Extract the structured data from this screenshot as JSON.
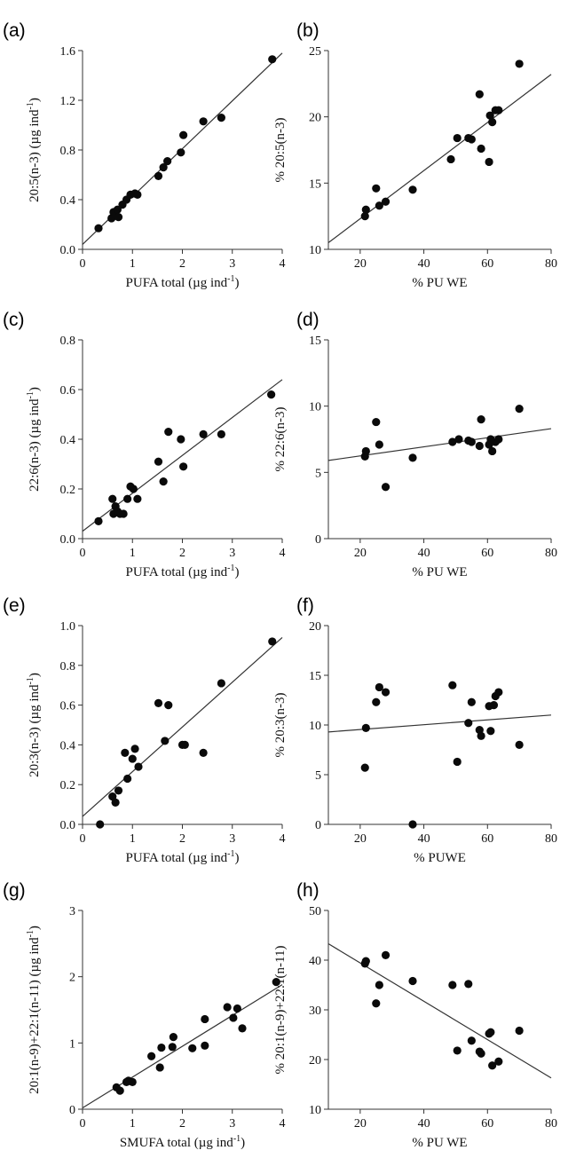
{
  "chart_data": [
    {
      "panel": "(a)",
      "type": "scatter",
      "xlabel": "PUFA total (µg ind",
      "xlabel_sup": "-1",
      "xlabel_end": ")",
      "ylabel": "20:5(n-3) (µg ind",
      "ylabel_sup": "-1",
      "ylabel_end": ")",
      "xlim": [
        0,
        4
      ],
      "ylim": [
        0.0,
        1.6
      ],
      "xticks": [
        0,
        1,
        2,
        3,
        4
      ],
      "yticks": [
        0.0,
        0.4,
        0.8,
        1.2,
        1.6
      ],
      "ytick_decimals": 1,
      "points": [
        [
          0.32,
          0.17
        ],
        [
          0.58,
          0.25
        ],
        [
          0.62,
          0.3
        ],
        [
          0.66,
          0.27
        ],
        [
          0.7,
          0.32
        ],
        [
          0.72,
          0.26
        ],
        [
          0.8,
          0.36
        ],
        [
          0.88,
          0.4
        ],
        [
          0.96,
          0.44
        ],
        [
          1.05,
          0.45
        ],
        [
          1.1,
          0.44
        ],
        [
          1.52,
          0.59
        ],
        [
          1.62,
          0.66
        ],
        [
          1.7,
          0.71
        ],
        [
          1.97,
          0.78
        ],
        [
          2.02,
          0.92
        ],
        [
          2.42,
          1.03
        ],
        [
          2.78,
          1.06
        ],
        [
          3.8,
          1.53
        ]
      ],
      "fit_line": [
        [
          0,
          0.04
        ],
        [
          4,
          1.58
        ]
      ]
    },
    {
      "panel": "(b)",
      "type": "scatter",
      "xlabel": "% PU WE",
      "ylabel": "% 20:5(n-3)",
      "xlim": [
        10,
        80
      ],
      "ylim": [
        10,
        25
      ],
      "xticks": [
        20,
        40,
        60,
        80
      ],
      "yticks": [
        10,
        15,
        20,
        25
      ],
      "ytick_decimals": 0,
      "points": [
        [
          21.5,
          12.5
        ],
        [
          21.8,
          13.0
        ],
        [
          25.0,
          14.6
        ],
        [
          26.0,
          13.3
        ],
        [
          28.0,
          13.6
        ],
        [
          36.5,
          14.5
        ],
        [
          48.5,
          16.8
        ],
        [
          50.5,
          18.4
        ],
        [
          54.0,
          18.4
        ],
        [
          55.0,
          18.3
        ],
        [
          57.5,
          21.7
        ],
        [
          58.0,
          17.6
        ],
        [
          60.5,
          16.6
        ],
        [
          60.8,
          20.1
        ],
        [
          61.5,
          19.6
        ],
        [
          62.5,
          20.5
        ],
        [
          63.5,
          20.5
        ],
        [
          70.0,
          24.0
        ]
      ],
      "fit_line": [
        [
          10,
          10.5
        ],
        [
          80,
          23.2
        ]
      ]
    },
    {
      "panel": "(c)",
      "type": "scatter",
      "xlabel": "PUFA total (µg ind",
      "xlabel_sup": "-1",
      "xlabel_end": ")",
      "ylabel": "22:6(n-3) (µg ind",
      "ylabel_sup": "-1",
      "ylabel_end": ")",
      "xlim": [
        0,
        4
      ],
      "ylim": [
        0.0,
        0.8
      ],
      "xticks": [
        0,
        1,
        2,
        3,
        4
      ],
      "yticks": [
        0.0,
        0.2,
        0.4,
        0.6,
        0.8
      ],
      "ytick_decimals": 1,
      "points": [
        [
          0.32,
          0.07
        ],
        [
          0.6,
          0.16
        ],
        [
          0.62,
          0.1
        ],
        [
          0.66,
          0.13
        ],
        [
          0.7,
          0.11
        ],
        [
          0.75,
          0.1
        ],
        [
          0.82,
          0.1
        ],
        [
          0.9,
          0.16
        ],
        [
          0.96,
          0.21
        ],
        [
          1.02,
          0.2
        ],
        [
          1.1,
          0.16
        ],
        [
          1.52,
          0.31
        ],
        [
          1.62,
          0.23
        ],
        [
          1.72,
          0.43
        ],
        [
          1.97,
          0.4
        ],
        [
          2.02,
          0.29
        ],
        [
          2.42,
          0.42
        ],
        [
          2.78,
          0.42
        ],
        [
          3.78,
          0.58
        ]
      ],
      "fit_line": [
        [
          0,
          0.03
        ],
        [
          4,
          0.64
        ]
      ]
    },
    {
      "panel": "(d)",
      "type": "scatter",
      "xlabel": "% PU WE",
      "ylabel": "% 22:6(n-3)",
      "xlim": [
        10,
        80
      ],
      "ylim": [
        0,
        15
      ],
      "xticks": [
        20,
        40,
        60,
        80
      ],
      "yticks": [
        0,
        5,
        10,
        15
      ],
      "ytick_decimals": 0,
      "points": [
        [
          21.5,
          6.2
        ],
        [
          21.8,
          6.6
        ],
        [
          25.0,
          8.8
        ],
        [
          26.0,
          7.1
        ],
        [
          28.0,
          3.9
        ],
        [
          36.5,
          6.1
        ],
        [
          49.0,
          7.3
        ],
        [
          51.0,
          7.5
        ],
        [
          54.0,
          7.4
        ],
        [
          55.0,
          7.3
        ],
        [
          57.5,
          7.0
        ],
        [
          58.0,
          9.0
        ],
        [
          60.5,
          7.1
        ],
        [
          61.0,
          7.5
        ],
        [
          61.5,
          6.6
        ],
        [
          62.5,
          7.3
        ],
        [
          63.5,
          7.5
        ],
        [
          70.0,
          9.8
        ]
      ],
      "fit_line": [
        [
          10,
          5.9
        ],
        [
          80,
          8.3
        ]
      ]
    },
    {
      "panel": "(e)",
      "type": "scatter",
      "xlabel": "PUFA total (µg ind",
      "xlabel_sup": "-1",
      "xlabel_end": ")",
      "ylabel": "20:3(n-3) (µg ind",
      "ylabel_sup": "-1",
      "ylabel_end": ")",
      "xlim": [
        0,
        4
      ],
      "ylim": [
        0.0,
        1.0
      ],
      "xticks": [
        0,
        1,
        2,
        3,
        4
      ],
      "yticks": [
        0.0,
        0.2,
        0.4,
        0.6,
        0.8,
        1.0
      ],
      "ytick_decimals": 1,
      "points": [
        [
          0.35,
          0.0
        ],
        [
          0.6,
          0.14
        ],
        [
          0.66,
          0.11
        ],
        [
          0.72,
          0.17
        ],
        [
          0.85,
          0.36
        ],
        [
          0.9,
          0.23
        ],
        [
          1.0,
          0.33
        ],
        [
          1.05,
          0.38
        ],
        [
          1.12,
          0.29
        ],
        [
          1.52,
          0.61
        ],
        [
          1.65,
          0.42
        ],
        [
          1.72,
          0.6
        ],
        [
          2.0,
          0.4
        ],
        [
          2.05,
          0.4
        ],
        [
          2.42,
          0.36
        ],
        [
          2.78,
          0.71
        ],
        [
          3.8,
          0.92
        ]
      ],
      "fit_line": [
        [
          0,
          0.04
        ],
        [
          4,
          0.94
        ]
      ]
    },
    {
      "panel": "(f)",
      "type": "scatter",
      "xlabel": "% PUWE",
      "ylabel": "% 20:3(n-3)",
      "xlim": [
        10,
        80
      ],
      "ylim": [
        0,
        20
      ],
      "xticks": [
        20,
        40,
        60,
        80
      ],
      "yticks": [
        0,
        5,
        10,
        15,
        20
      ],
      "ytick_decimals": 0,
      "points": [
        [
          21.5,
          5.7
        ],
        [
          21.8,
          9.7
        ],
        [
          25.0,
          12.3
        ],
        [
          26.0,
          13.8
        ],
        [
          28.0,
          13.3
        ],
        [
          36.5,
          0.0
        ],
        [
          49.0,
          14.0
        ],
        [
          50.5,
          6.3
        ],
        [
          54.0,
          10.2
        ],
        [
          55.0,
          12.3
        ],
        [
          57.5,
          9.5
        ],
        [
          58.0,
          8.9
        ],
        [
          60.5,
          11.9
        ],
        [
          61.0,
          9.4
        ],
        [
          62.0,
          12.0
        ],
        [
          62.5,
          12.9
        ],
        [
          63.5,
          13.3
        ],
        [
          70.0,
          8.0
        ]
      ],
      "fit_line": [
        [
          10,
          9.3
        ],
        [
          80,
          11.0
        ]
      ]
    },
    {
      "panel": "(g)",
      "type": "scatter",
      "xlabel": "SMUFA total (µg ind",
      "xlabel_sup": "-1",
      "xlabel_end": ")",
      "ylabel": "20:1(n-9)+22:1(n-11) (µg ind",
      "ylabel_sup": "-1",
      "ylabel_end": ")",
      "xlim": [
        0,
        4
      ],
      "ylim": [
        0,
        3
      ],
      "xticks": [
        0,
        1,
        2,
        3,
        4
      ],
      "yticks": [
        0,
        1,
        2,
        3
      ],
      "ytick_decimals": 0,
      "points": [
        [
          0.68,
          0.33
        ],
        [
          0.75,
          0.28
        ],
        [
          0.88,
          0.41
        ],
        [
          0.92,
          0.43
        ],
        [
          1.0,
          0.41
        ],
        [
          1.38,
          0.8
        ],
        [
          1.55,
          0.63
        ],
        [
          1.58,
          0.93
        ],
        [
          1.8,
          0.94
        ],
        [
          1.82,
          1.09
        ],
        [
          2.2,
          0.92
        ],
        [
          2.45,
          1.36
        ],
        [
          2.45,
          0.96
        ],
        [
          2.9,
          1.54
        ],
        [
          3.02,
          1.38
        ],
        [
          3.1,
          1.52
        ],
        [
          3.2,
          1.22
        ],
        [
          3.88,
          1.92
        ]
      ],
      "fit_line": [
        [
          0,
          0.02
        ],
        [
          4,
          1.88
        ]
      ]
    },
    {
      "panel": "(h)",
      "type": "scatter",
      "xlabel": "% PU WE",
      "ylabel": "% 20:1(n-9)+22:1(n-11)",
      "xlim": [
        10,
        80
      ],
      "ylim": [
        10,
        50
      ],
      "xticks": [
        20,
        40,
        60,
        80
      ],
      "yticks": [
        10,
        20,
        30,
        40,
        50
      ],
      "ytick_decimals": 0,
      "points": [
        [
          21.5,
          39.3
        ],
        [
          21.8,
          39.8
        ],
        [
          25.0,
          31.3
        ],
        [
          26.0,
          35.0
        ],
        [
          28.0,
          41.0
        ],
        [
          36.5,
          35.8
        ],
        [
          49.0,
          35.0
        ],
        [
          50.5,
          21.8
        ],
        [
          54.0,
          35.2
        ],
        [
          55.0,
          23.8
        ],
        [
          57.5,
          21.6
        ],
        [
          58.0,
          21.2
        ],
        [
          60.5,
          25.2
        ],
        [
          61.0,
          25.5
        ],
        [
          61.5,
          18.8
        ],
        [
          63.5,
          19.6
        ],
        [
          70.0,
          25.8
        ]
      ],
      "fit_line": [
        [
          10,
          43.3
        ],
        [
          80,
          16.3
        ]
      ]
    }
  ]
}
